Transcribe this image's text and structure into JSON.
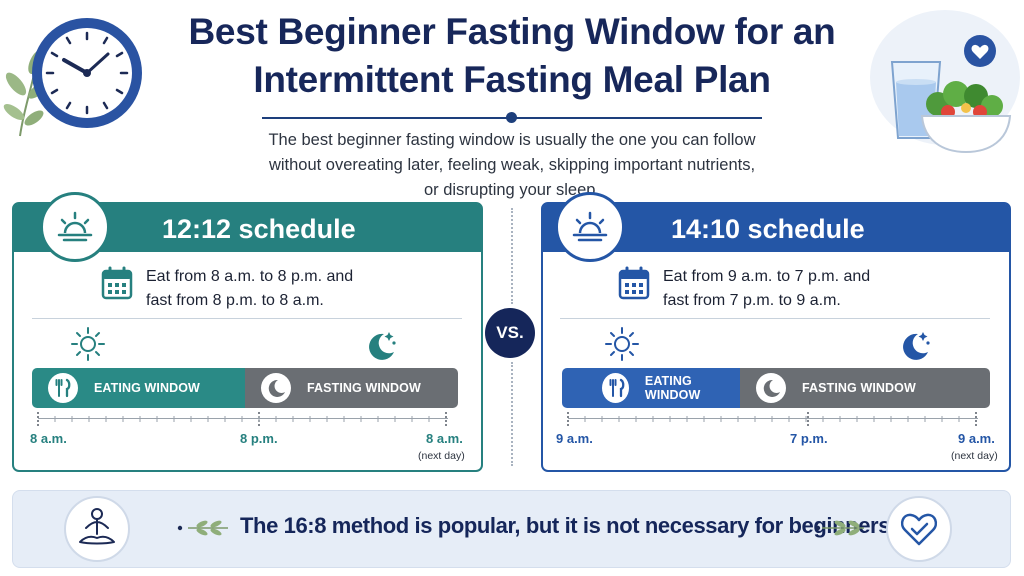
{
  "header": {
    "title_line1": "Best Beginner Fasting Window for an",
    "title_line2": "Intermittent Fasting Meal Plan",
    "subtitle_line1": "The best beginner fasting window is usually the one you can follow",
    "subtitle_line2": "without overeating later, feeling weak, skipping important nutrients,",
    "subtitle_line3": "or disrupting your sleep."
  },
  "left_card": {
    "title": "12:12 schedule",
    "desc_line1": "Eat from 8 a.m. to 8 p.m. and",
    "desc_line2": "fast from 8 p.m. to 8 a.m.",
    "eating_label": "EATING WINDOW",
    "fasting_label": "FASTING WINDOW",
    "eating_fraction": 0.5,
    "time_start": "8 a.m.",
    "time_mid": "8 p.m.",
    "time_end": "8 a.m.",
    "next_day": "(next day)",
    "accent": "#26807f"
  },
  "right_card": {
    "title": "14:10 schedule",
    "desc_line1": "Eat from 9 a.m. to 7 p.m. and",
    "desc_line2": "fast from 7 p.m. to 9 a.m.",
    "eating_label": "EATING WINDOW",
    "fasting_label": "FASTING WINDOW",
    "eating_fraction": 0.417,
    "time_start": "9 a.m.",
    "time_mid": "7 p.m.",
    "time_end": "9 a.m.",
    "next_day": "(next day)",
    "accent": "#2456a6"
  },
  "vs_label": "VS.",
  "footer": {
    "text": "The 16:8 method is popular, but it is not necessary for beginners."
  },
  "icons": [
    "clock-icon",
    "leaf-icon",
    "water-glass-icon",
    "salad-bowl-icon",
    "heart-icon",
    "sunrise-icon",
    "calendar-icon",
    "sun-icon",
    "moon-stars-icon",
    "fork-knife-icon",
    "moon-icon",
    "meditation-icon",
    "heart-outline-icon"
  ]
}
